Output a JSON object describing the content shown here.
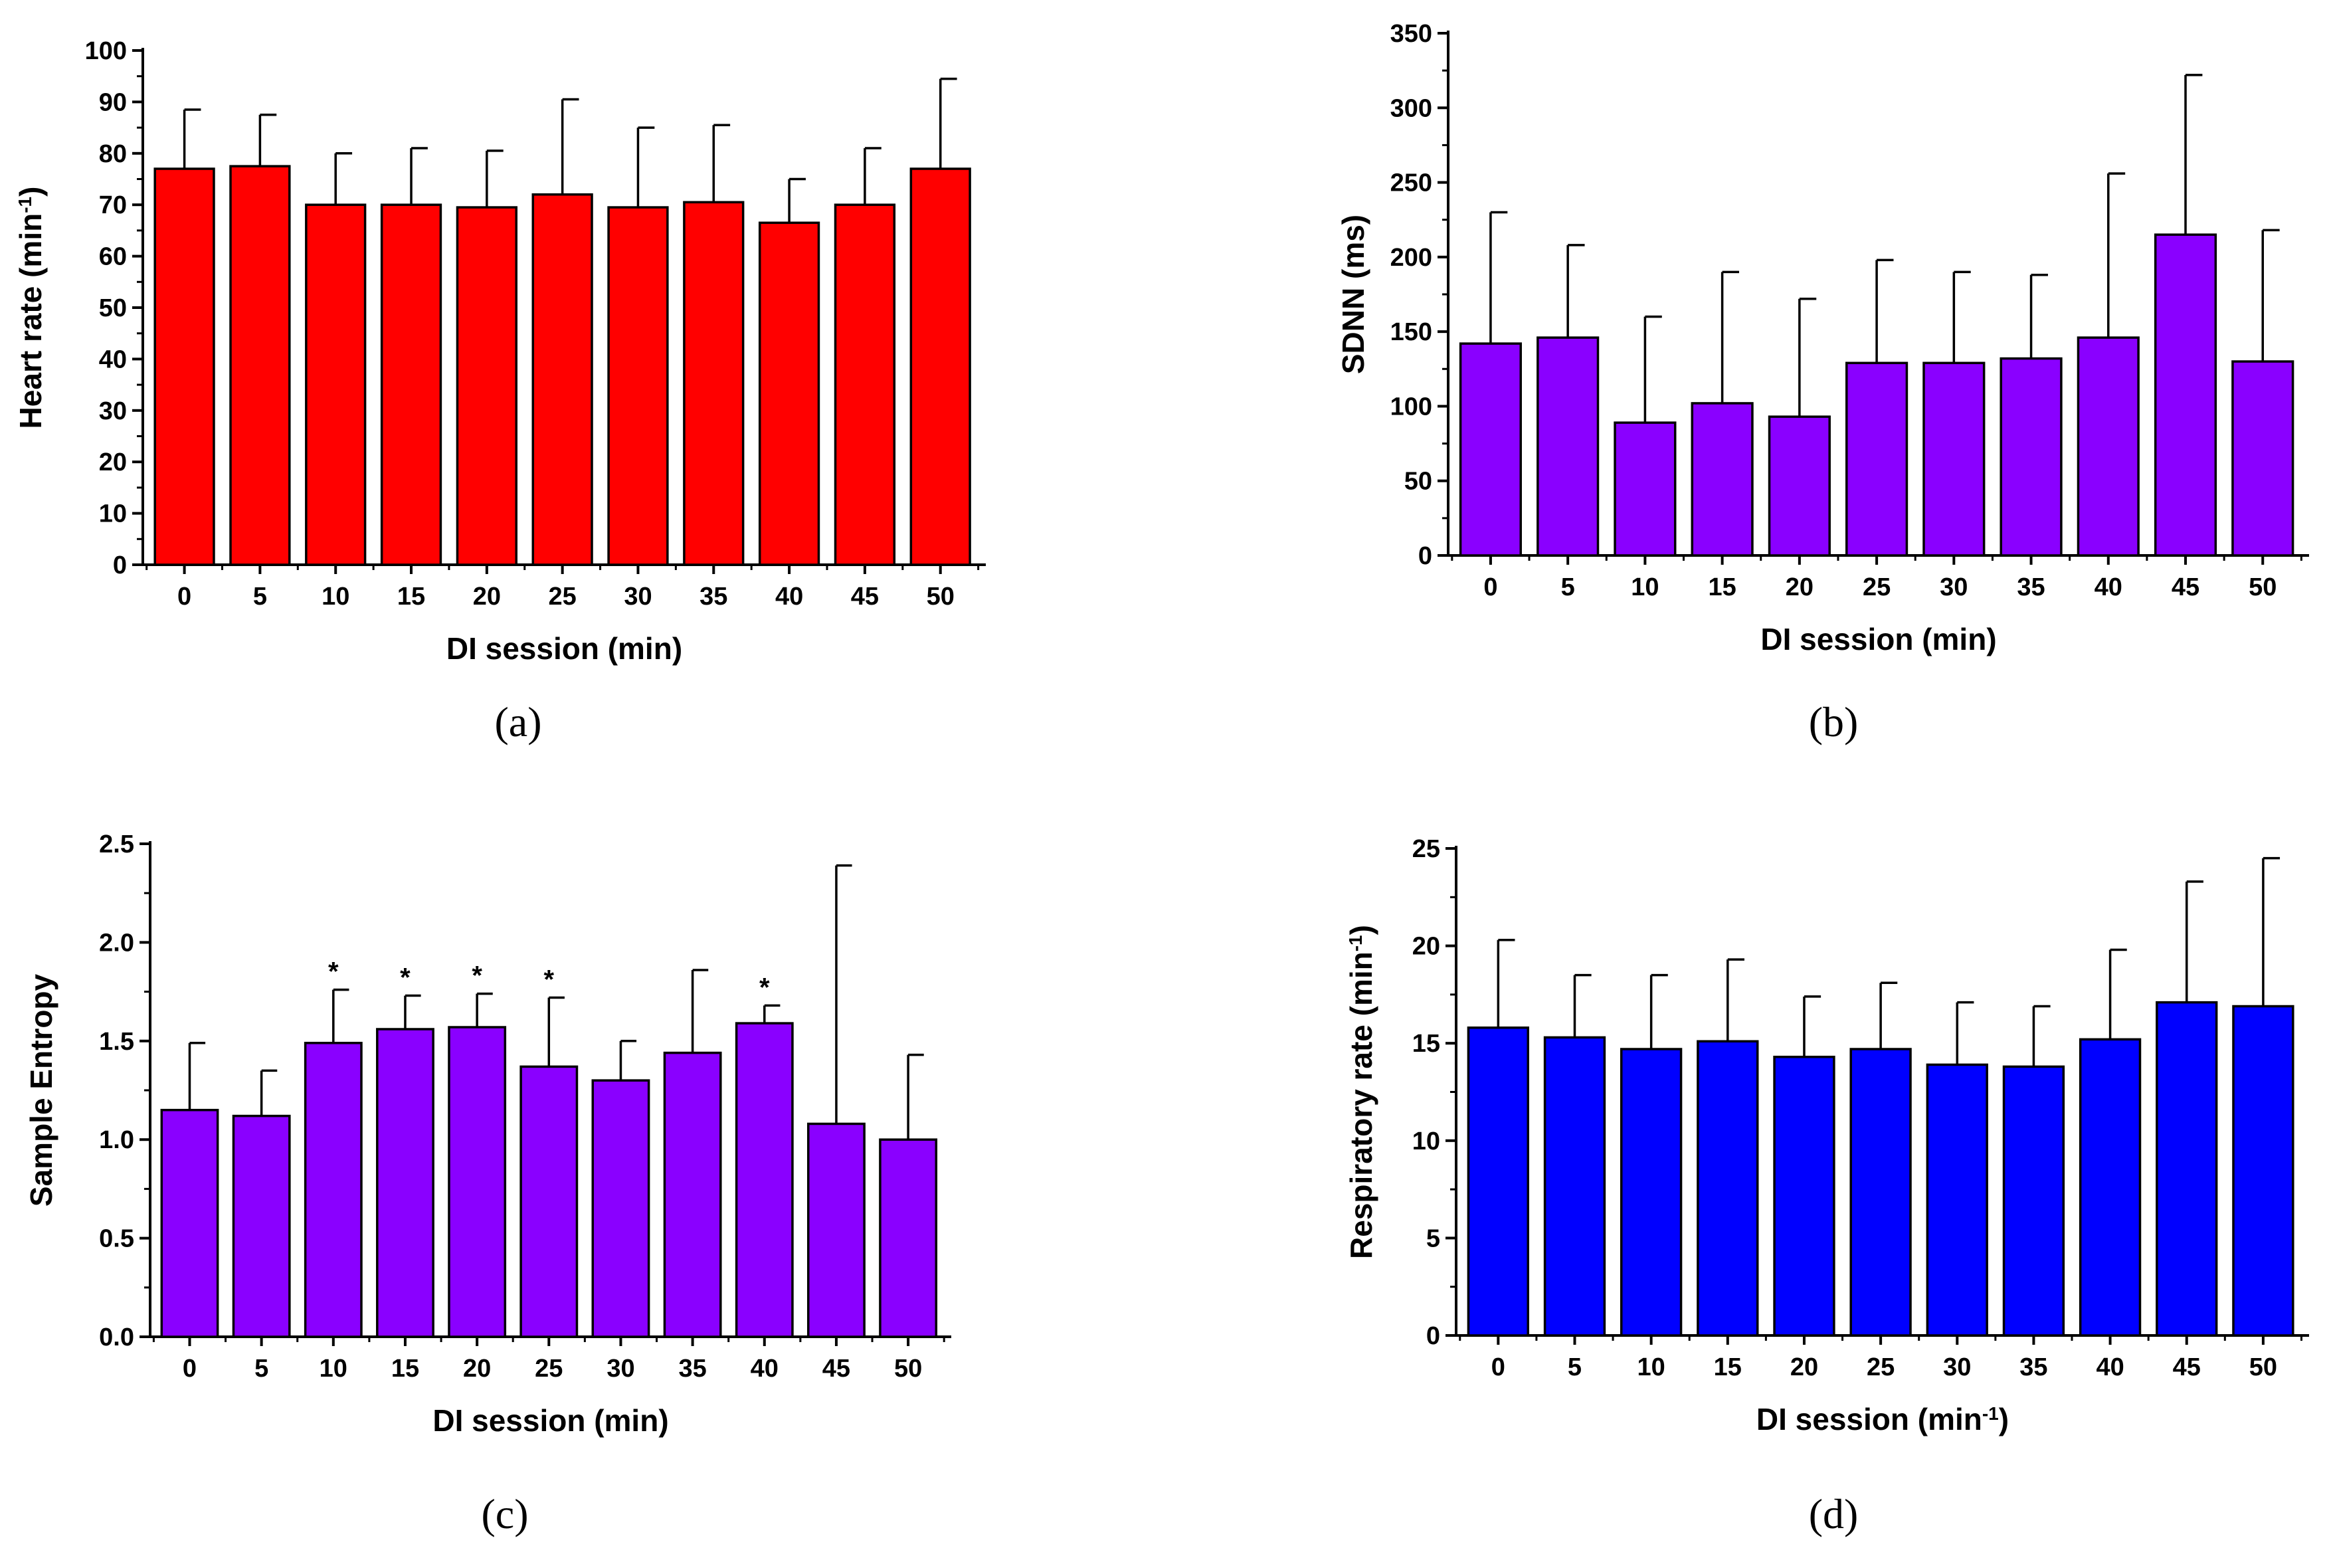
{
  "chart_data": [
    {
      "id": "a",
      "type": "bar",
      "panel_label": "(a)",
      "categories": [
        "0",
        "5",
        "10",
        "15",
        "20",
        "25",
        "30",
        "35",
        "40",
        "45",
        "50"
      ],
      "values": [
        77,
        77.5,
        70,
        70,
        69.5,
        72,
        69.5,
        70.5,
        66.5,
        70,
        77
      ],
      "errors": [
        11.5,
        10,
        10,
        11,
        11,
        18.5,
        15.5,
        15,
        8.5,
        11,
        17.5
      ],
      "xlabel": "DI session (min)",
      "ylabel": "Heart rate (min",
      "ylabel_sup": "-1",
      "ylabel_close": ")",
      "ylim": [
        0,
        100
      ],
      "yticks": [
        "0",
        "10",
        "20",
        "30",
        "40",
        "50",
        "60",
        "70",
        "80",
        "90",
        "100"
      ],
      "bar_color": "#ff0000",
      "annotations": []
    },
    {
      "id": "b",
      "type": "bar",
      "panel_label": "(b)",
      "categories": [
        "0",
        "5",
        "10",
        "15",
        "20",
        "25",
        "30",
        "35",
        "40",
        "45",
        "50"
      ],
      "values": [
        142,
        146,
        89,
        102,
        93,
        129,
        129,
        132,
        146,
        215,
        130
      ],
      "errors": [
        88,
        62,
        71,
        88,
        79,
        69,
        61,
        56,
        110,
        107,
        88
      ],
      "xlabel": "DI session (min)",
      "ylabel": "SDNN (ms)",
      "ylabel_sup": "",
      "ylabel_close": "",
      "ylim": [
        0,
        350
      ],
      "yticks": [
        "0",
        "50",
        "100",
        "150",
        "200",
        "250",
        "300",
        "350"
      ],
      "bar_color": "#8a00ff",
      "annotations": []
    },
    {
      "id": "c",
      "type": "bar",
      "panel_label": "(c)",
      "categories": [
        "0",
        "5",
        "10",
        "15",
        "20",
        "25",
        "30",
        "35",
        "40",
        "45",
        "50"
      ],
      "values": [
        1.15,
        1.12,
        1.49,
        1.56,
        1.57,
        1.37,
        1.3,
        1.44,
        1.59,
        1.08,
        1.0
      ],
      "errors": [
        0.34,
        0.23,
        0.27,
        0.17,
        0.17,
        0.35,
        0.2,
        0.42,
        0.09,
        1.31,
        0.43
      ],
      "xlabel": "DI session (min)",
      "ylabel": "Sample Entropy",
      "ylabel_sup": "",
      "ylabel_close": "",
      "ylim": [
        0,
        2.5
      ],
      "yticks": [
        "0.0",
        "0.5",
        "1.0",
        "1.5",
        "2.0",
        "2.5"
      ],
      "bar_color": "#8a00ff",
      "annotations": [
        "",
        "",
        "*",
        "*",
        "*",
        "*",
        "",
        "",
        "*",
        "",
        ""
      ]
    },
    {
      "id": "d",
      "type": "bar",
      "panel_label": "(d)",
      "categories": [
        "0",
        "5",
        "10",
        "15",
        "20",
        "25",
        "30",
        "35",
        "40",
        "45",
        "50"
      ],
      "values": [
        15.8,
        15.3,
        14.7,
        15.1,
        14.3,
        14.7,
        13.9,
        13.8,
        15.2,
        17.1,
        16.9
      ],
      "errors": [
        4.5,
        3.2,
        3.8,
        4.2,
        3.1,
        3.4,
        3.2,
        3.1,
        4.6,
        6.2,
        7.6
      ],
      "xlabel": "DI session (min",
      "xlabel_sup": "-1",
      "xlabel_close": ")",
      "ylabel": "Respiratory rate (min",
      "ylabel_sup": "-1",
      "ylabel_close": ")",
      "ylim": [
        0,
        25
      ],
      "yticks": [
        "0",
        "5",
        "10",
        "15",
        "20",
        "25"
      ],
      "bar_color": "#0000ff",
      "annotations": []
    }
  ]
}
